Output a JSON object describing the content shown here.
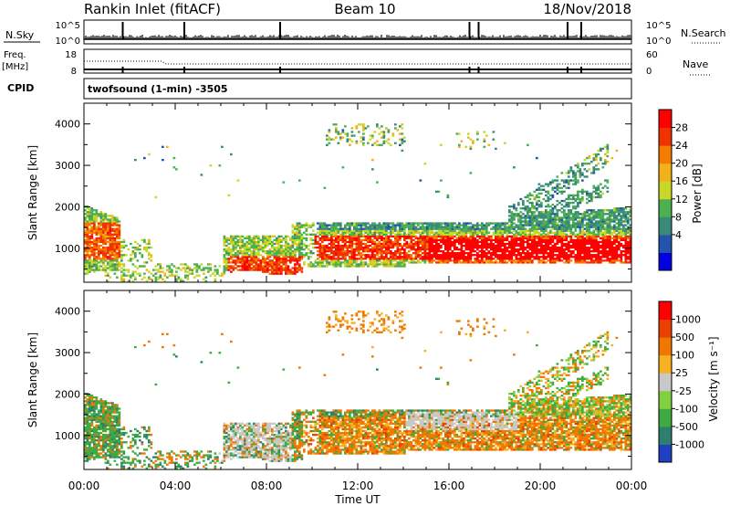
{
  "header": {
    "station": "Rankin Inlet (fitACF)",
    "beam": "Beam 10",
    "date": "18/Nov/2018"
  },
  "nsky_panel": {
    "left_label": "N.Sky",
    "right_label": "N.Search",
    "top_tick": "10^5",
    "bottom_tick": "10^0"
  },
  "freq_panel": {
    "label_freq": "Freq.",
    "label_unit": "[MHz]",
    "right_label": "Nave",
    "left_ticks": [
      "18",
      "8"
    ],
    "right_ticks": [
      "60",
      "0"
    ]
  },
  "cpid": {
    "label": "CPID",
    "text": "twofsound (1-min) -3505"
  },
  "power_panel": {
    "ylabel": "Slant Range [km]",
    "cbar_label": "Power [dB]",
    "cbar_ticks": [
      "28",
      "24",
      "20",
      "16",
      "12",
      "8",
      "4"
    ]
  },
  "velocity_panel": {
    "ylabel": "Slant Range [km]",
    "cbar_label": "Velocity [m s⁻¹]",
    "cbar_ticks": [
      "1000",
      "500",
      "100",
      "25",
      "-25",
      "-100",
      "-500",
      "-1000"
    ]
  },
  "x_axis": {
    "label": "Time UT",
    "ticks": [
      "00:00",
      "04:00",
      "08:00",
      "12:00",
      "16:00",
      "20:00",
      "00:00"
    ]
  },
  "chart_data": [
    {
      "type": "heatmap",
      "title": "Power",
      "xlabel": "Time UT",
      "ylabel": "Slant Range [km]",
      "ylim": [
        180,
        4500
      ],
      "y_ticks": [
        1000,
        2000,
        3000,
        4000
      ],
      "colorbar": {
        "label": "Power [dB]",
        "range": [
          0,
          31
        ],
        "ticks": [
          4,
          8,
          12,
          16,
          20,
          24,
          28
        ]
      }
    },
    {
      "type": "heatmap",
      "title": "Velocity",
      "xlabel": "Time UT",
      "ylabel": "Slant Range [km]",
      "ylim": [
        180,
        4500
      ],
      "y_ticks": [
        1000,
        2000,
        3000,
        4000
      ],
      "colorbar": {
        "label": "Velocity [m s-1]",
        "ticks": [
          1000,
          500,
          100,
          25,
          -25,
          -100,
          -500,
          -1000
        ]
      }
    }
  ],
  "colors": {
    "power_scale": [
      "#0000e0",
      "#2255aa",
      "#3a8a7a",
      "#4caf50",
      "#c8d828",
      "#f2b118",
      "#f57c00",
      "#ee3300",
      "#ff0000"
    ],
    "velocity_scale": [
      "#2040c0",
      "#2f7f6f",
      "#3faa40",
      "#80d040",
      "#c8c8c8",
      "#f7b022",
      "#f07800",
      "#e84000",
      "#ff0000"
    ]
  }
}
